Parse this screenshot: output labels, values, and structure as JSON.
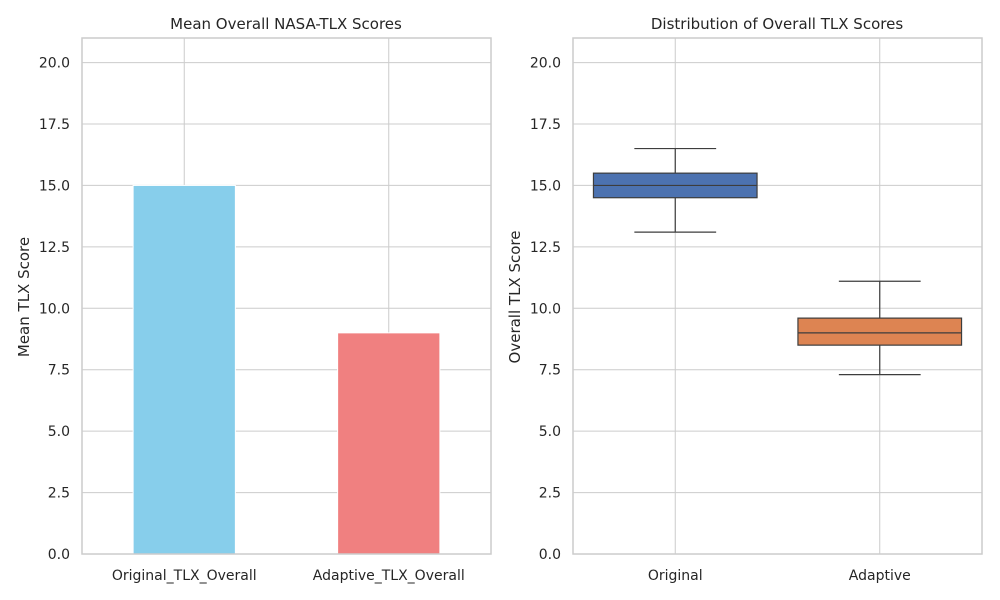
{
  "chart_data": [
    {
      "type": "bar",
      "title": "Mean Overall NASA-TLX Scores",
      "xlabel": "",
      "ylabel": "Mean TLX Score",
      "ylim": [
        0,
        21
      ],
      "yticks": [
        "0.0",
        "2.5",
        "5.0",
        "7.5",
        "10.0",
        "12.5",
        "15.0",
        "17.5",
        "20.0"
      ],
      "categories": [
        "Original_TLX_Overall",
        "Adaptive_TLX_Overall"
      ],
      "values": [
        15.0,
        9.0
      ],
      "colors": [
        "#87ceeb",
        "#f08080"
      ],
      "grid": true
    },
    {
      "type": "box",
      "title": "Distribution of Overall TLX Scores",
      "xlabel": "",
      "ylabel": "Overall TLX Score",
      "ylim": [
        0,
        21
      ],
      "yticks": [
        "0.0",
        "2.5",
        "5.0",
        "7.5",
        "10.0",
        "12.5",
        "15.0",
        "17.5",
        "20.0"
      ],
      "categories": [
        "Original",
        "Adaptive"
      ],
      "boxes": [
        {
          "whisker_low": 13.1,
          "q1": 14.5,
          "median": 15.0,
          "q3": 15.5,
          "whisker_high": 16.5
        },
        {
          "whisker_low": 7.3,
          "q1": 8.5,
          "median": 9.0,
          "q3": 9.6,
          "whisker_high": 11.1
        }
      ],
      "colors": [
        "#4c72b0",
        "#dd8452"
      ],
      "grid": true
    }
  ]
}
